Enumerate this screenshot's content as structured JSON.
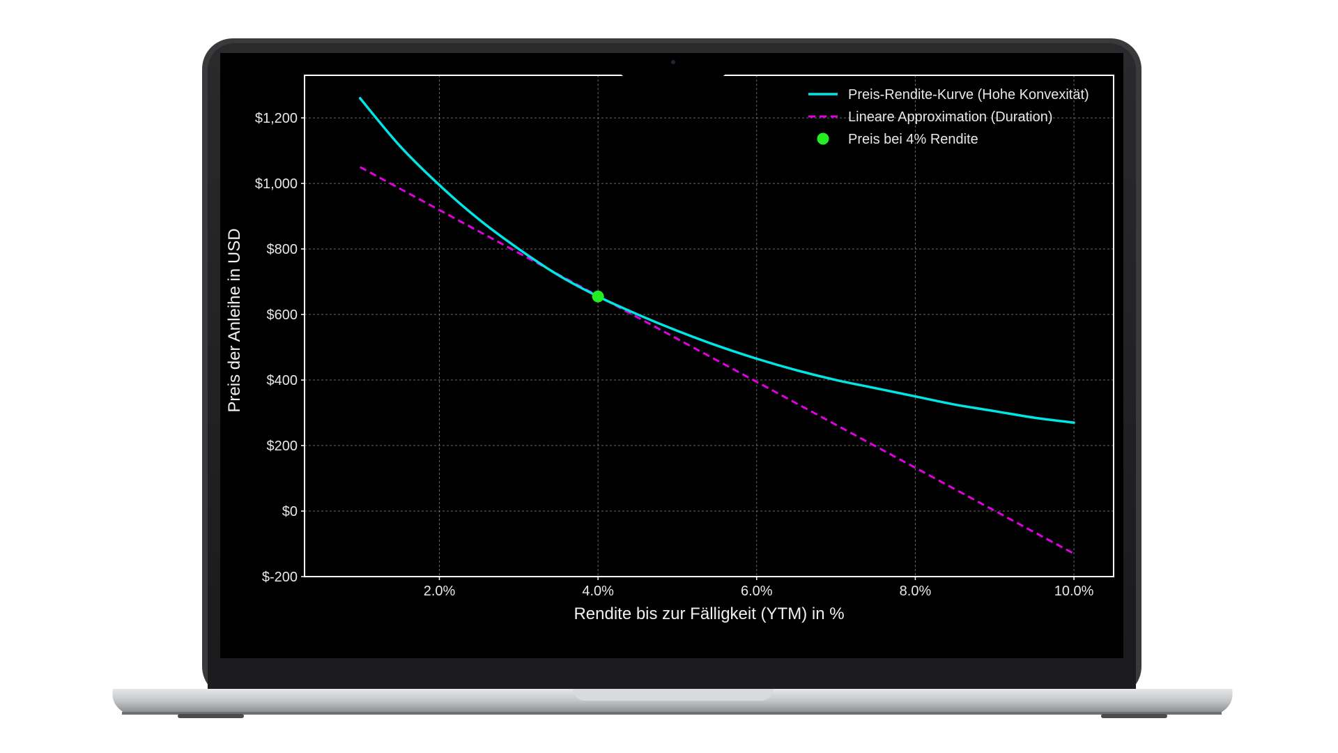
{
  "colors": {
    "background": "#000000",
    "curve": "#00e5e5",
    "tangent": "#e000e0",
    "point": "#22ee22",
    "grid": "#6a6a6a",
    "frame": "#ffffff",
    "text": "#e8e8e8"
  },
  "chart_data": {
    "type": "line",
    "title": "",
    "xlabel": "Rendite bis zur Fälligkeit (YTM) in %",
    "ylabel": "Preis der Anleihe in USD",
    "xlim": [
      0.3,
      10.5
    ],
    "ylim": [
      -200,
      1330
    ],
    "x_ticks": [
      2,
      4,
      6,
      8,
      10
    ],
    "x_tick_labels": [
      "2.0%",
      "4.0%",
      "6.0%",
      "8.0%",
      "10.0%"
    ],
    "y_ticks": [
      -200,
      0,
      200,
      400,
      600,
      800,
      1000,
      1200
    ],
    "y_tick_labels": [
      "$-200",
      "$0",
      "$200",
      "$400",
      "$600",
      "$800",
      "$1,000",
      "$1,200"
    ],
    "grid": true,
    "legend_position": "top-right",
    "series": [
      {
        "name": "Preis-Rendite-Kurve (Hohe Konvexität)",
        "style": "solid",
        "x": [
          1.0,
          1.5,
          2.0,
          2.5,
          3.0,
          3.5,
          4.0,
          4.5,
          5.0,
          5.5,
          6.0,
          6.5,
          7.0,
          7.5,
          8.0,
          8.5,
          9.0,
          9.5,
          10.0
        ],
        "y": [
          1260,
          1115,
          995,
          890,
          800,
          720,
          655,
          600,
          550,
          505,
          465,
          430,
          400,
          375,
          350,
          325,
          305,
          285,
          270
        ]
      },
      {
        "name": "Lineare Approximation (Duration)",
        "style": "dashed",
        "x": [
          1.0,
          10.0
        ],
        "y": [
          1050,
          -130
        ]
      },
      {
        "name": "Preis bei 4% Rendite",
        "style": "marker",
        "x": [
          4.0
        ],
        "y": [
          655
        ]
      }
    ]
  }
}
